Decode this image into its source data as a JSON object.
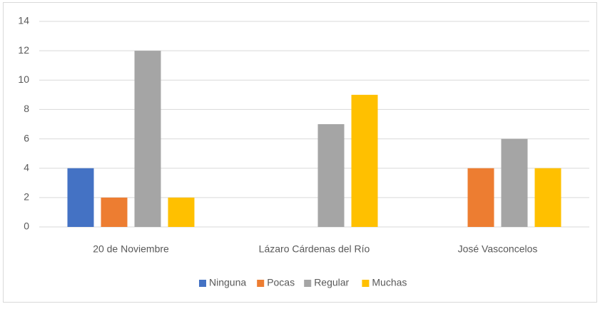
{
  "chart_data": {
    "type": "bar",
    "categories": [
      "20 de Noviembre",
      "Lázaro Cárdenas del Río",
      "José Vasconcelos"
    ],
    "series": [
      {
        "name": "Ninguna",
        "color": "#4472c4",
        "values": [
          4,
          0,
          0
        ]
      },
      {
        "name": "Pocas",
        "color": "#ed7d31",
        "values": [
          2,
          0,
          4
        ]
      },
      {
        "name": "Regular",
        "color": "#a5a5a5",
        "values": [
          12,
          7,
          6
        ]
      },
      {
        "name": "Muchas",
        "color": "#ffc000",
        "values": [
          2,
          9,
          4
        ]
      }
    ],
    "ylim": [
      0,
      14
    ],
    "yticks": [
      0,
      2,
      4,
      6,
      8,
      10,
      12,
      14
    ],
    "grid": true,
    "legend": "bottom"
  }
}
